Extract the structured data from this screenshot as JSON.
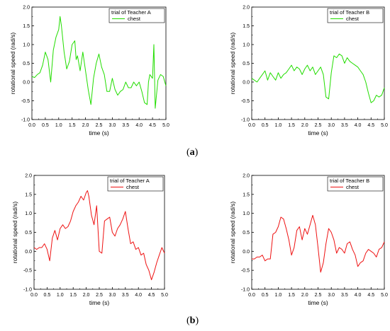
{
  "panel_labels": {
    "a": "a",
    "b": "b"
  },
  "chart_data": [
    {
      "type": "line",
      "legend_title": "trial of Teacher A",
      "series": [
        {
          "name": "chest",
          "color": "#22dd00",
          "x": [
            0.0,
            0.1,
            0.2,
            0.3,
            0.4,
            0.5,
            0.6,
            0.7,
            0.8,
            0.9,
            1.0,
            1.05,
            1.1,
            1.2,
            1.3,
            1.4,
            1.5,
            1.6,
            1.65,
            1.7,
            1.8,
            1.9,
            2.0,
            2.1,
            2.2,
            2.3,
            2.4,
            2.5,
            2.6,
            2.7,
            2.8,
            2.9,
            3.0,
            3.1,
            3.2,
            3.3,
            3.4,
            3.5,
            3.6,
            3.7,
            3.8,
            3.9,
            4.0,
            4.1,
            4.2,
            4.3,
            4.35,
            4.4,
            4.5,
            4.55,
            4.6,
            4.7,
            4.8,
            4.9,
            5.0
          ],
          "y": [
            0.15,
            0.12,
            0.2,
            0.25,
            0.45,
            0.8,
            0.6,
            0.0,
            0.85,
            1.2,
            1.4,
            1.75,
            1.5,
            0.8,
            0.35,
            0.55,
            1.0,
            1.1,
            0.6,
            0.7,
            0.3,
            0.8,
            0.3,
            -0.2,
            -0.6,
            0.1,
            0.5,
            0.75,
            0.4,
            0.2,
            -0.25,
            -0.25,
            0.1,
            -0.2,
            -0.35,
            -0.25,
            -0.2,
            0.0,
            -0.15,
            -0.15,
            0.0,
            -0.1,
            0.0,
            -0.25,
            -0.55,
            -0.6,
            0.0,
            0.2,
            0.1,
            1.0,
            -0.7,
            0.05,
            0.2,
            0.15,
            -0.1
          ]
        }
      ],
      "xlabel": "time (s)",
      "ylabel": "rotational speed (rad/s)",
      "xlim": [
        0.0,
        5.0
      ],
      "ylim": [
        -1.0,
        2.0
      ],
      "xticks": [
        "0.0",
        "0.5",
        "1.0",
        "1.5",
        "2.0",
        "2.5",
        "3.0",
        "3.5",
        "4.0",
        "4.5",
        "5.0"
      ],
      "yticks": [
        "-1.0",
        "-0.5",
        "0.0",
        "0.5",
        "1.0",
        "1.5",
        "2.0"
      ],
      "legend_position": "top-right"
    },
    {
      "type": "line",
      "legend_title": "trial of Teacher B",
      "series": [
        {
          "name": "chest",
          "color": "#22dd00",
          "x": [
            0.0,
            0.1,
            0.2,
            0.3,
            0.4,
            0.5,
            0.6,
            0.7,
            0.8,
            0.9,
            1.0,
            1.1,
            1.2,
            1.3,
            1.4,
            1.5,
            1.6,
            1.7,
            1.8,
            1.9,
            2.0,
            2.1,
            2.2,
            2.3,
            2.4,
            2.5,
            2.6,
            2.7,
            2.8,
            2.9,
            3.0,
            3.1,
            3.2,
            3.3,
            3.4,
            3.5,
            3.6,
            3.7,
            3.8,
            3.9,
            4.0,
            4.1,
            4.2,
            4.3,
            4.4,
            4.5,
            4.6,
            4.7,
            4.8,
            4.9,
            5.0
          ],
          "y": [
            0.1,
            0.05,
            0.0,
            0.1,
            0.2,
            0.3,
            0.05,
            0.25,
            0.15,
            0.05,
            0.25,
            0.1,
            0.2,
            0.25,
            0.35,
            0.45,
            0.3,
            0.4,
            0.35,
            0.2,
            0.35,
            0.45,
            0.3,
            0.4,
            0.2,
            0.3,
            0.4,
            0.2,
            -0.4,
            -0.45,
            0.25,
            0.7,
            0.65,
            0.75,
            0.7,
            0.5,
            0.65,
            0.55,
            0.5,
            0.45,
            0.4,
            0.3,
            0.2,
            0.0,
            -0.3,
            -0.55,
            -0.5,
            -0.35,
            -0.4,
            -0.35,
            -0.15
          ]
        }
      ],
      "xlabel": "time (s)",
      "ylabel": "rotational speed (rad/s)",
      "xlim": [
        0.0,
        5.0
      ],
      "ylim": [
        -1.0,
        2.0
      ],
      "xticks": [
        "0.0",
        "0.5",
        "1.0",
        "1.5",
        "2.0",
        "2.5",
        "3.0",
        "3.5",
        "4.0",
        "4.5",
        "5.0"
      ],
      "yticks": [
        "-1.0",
        "-0.5",
        "0.0",
        "0.5",
        "1.0",
        "1.5",
        "2.0"
      ],
      "legend_position": "top-right"
    },
    {
      "type": "line",
      "legend_title": "trial of Teacher A",
      "series": [
        {
          "name": "chest",
          "color": "#ee1111",
          "x": [
            0.0,
            0.1,
            0.2,
            0.3,
            0.4,
            0.5,
            0.6,
            0.7,
            0.8,
            0.9,
            1.0,
            1.1,
            1.2,
            1.3,
            1.4,
            1.5,
            1.6,
            1.7,
            1.8,
            1.9,
            2.0,
            2.05,
            2.1,
            2.2,
            2.3,
            2.4,
            2.5,
            2.6,
            2.7,
            2.8,
            2.9,
            3.0,
            3.1,
            3.2,
            3.3,
            3.4,
            3.5,
            3.6,
            3.7,
            3.8,
            3.9,
            4.0,
            4.1,
            4.2,
            4.3,
            4.4,
            4.5,
            4.6,
            4.7,
            4.8,
            4.9,
            5.0
          ],
          "y": [
            0.1,
            0.05,
            0.1,
            0.1,
            0.2,
            0.05,
            -0.25,
            0.35,
            0.55,
            0.3,
            0.6,
            0.7,
            0.6,
            0.65,
            0.8,
            1.05,
            1.2,
            1.3,
            1.45,
            1.35,
            1.55,
            1.6,
            1.45,
            0.95,
            0.7,
            1.2,
            0.0,
            -0.05,
            0.8,
            0.85,
            0.9,
            0.5,
            0.4,
            0.6,
            0.7,
            0.85,
            1.05,
            0.6,
            0.2,
            0.25,
            0.05,
            0.1,
            -0.1,
            -0.05,
            -0.35,
            -0.5,
            -0.75,
            -0.55,
            -0.3,
            -0.1,
            0.1,
            -0.05
          ]
        }
      ],
      "xlabel": "time (s)",
      "ylabel": "rotational speed (rad/s)",
      "xlim": [
        0.0,
        5.0
      ],
      "ylim": [
        -1.0,
        2.0
      ],
      "xticks": [
        "0.0",
        "0.5",
        "1.0",
        "1.5",
        "2.0",
        "2.5",
        "3.0",
        "3.5",
        "4.0",
        "4.5",
        "5.0"
      ],
      "yticks": [
        "-1.0",
        "-0.5",
        "0.0",
        "0.5",
        "1.0",
        "1.5",
        "2.0"
      ],
      "legend_position": "top-right"
    },
    {
      "type": "line",
      "legend_title": "trial of Teacher B",
      "series": [
        {
          "name": "chest",
          "color": "#ee1111",
          "x": [
            0.0,
            0.1,
            0.2,
            0.3,
            0.4,
            0.5,
            0.6,
            0.7,
            0.8,
            0.9,
            1.0,
            1.1,
            1.2,
            1.3,
            1.4,
            1.5,
            1.6,
            1.7,
            1.8,
            1.9,
            2.0,
            2.1,
            2.2,
            2.3,
            2.4,
            2.5,
            2.6,
            2.7,
            2.8,
            2.9,
            3.0,
            3.1,
            3.2,
            3.3,
            3.4,
            3.5,
            3.6,
            3.7,
            3.8,
            3.9,
            4.0,
            4.1,
            4.2,
            4.3,
            4.4,
            4.5,
            4.6,
            4.7,
            4.8,
            4.9,
            5.0
          ],
          "y": [
            -0.2,
            -0.2,
            -0.15,
            -0.15,
            -0.1,
            -0.25,
            -0.2,
            -0.2,
            0.45,
            0.5,
            0.65,
            0.9,
            0.85,
            0.6,
            0.3,
            -0.1,
            0.1,
            0.55,
            0.65,
            0.3,
            0.6,
            0.45,
            0.7,
            0.95,
            0.7,
            0.1,
            -0.55,
            -0.3,
            0.2,
            0.6,
            0.5,
            0.3,
            -0.05,
            0.1,
            0.05,
            -0.05,
            0.2,
            0.25,
            0.05,
            -0.1,
            -0.4,
            -0.3,
            -0.25,
            -0.05,
            0.05,
            0.0,
            -0.05,
            -0.15,
            0.05,
            0.1,
            0.25
          ]
        }
      ],
      "xlabel": "time (s)",
      "ylabel": "rotational speed (rad/s)",
      "xlim": [
        0.0,
        5.0
      ],
      "ylim": [
        -1.0,
        2.0
      ],
      "xticks": [
        "0.0",
        "0.5",
        "1.0",
        "1.5",
        "2.0",
        "2.5",
        "3.0",
        "3.5",
        "4.0",
        "4.5",
        "5.0"
      ],
      "yticks": [
        "-1.0",
        "-0.5",
        "0.0",
        "0.5",
        "1.0",
        "1.5",
        "2.0"
      ],
      "legend_position": "top-right"
    }
  ]
}
